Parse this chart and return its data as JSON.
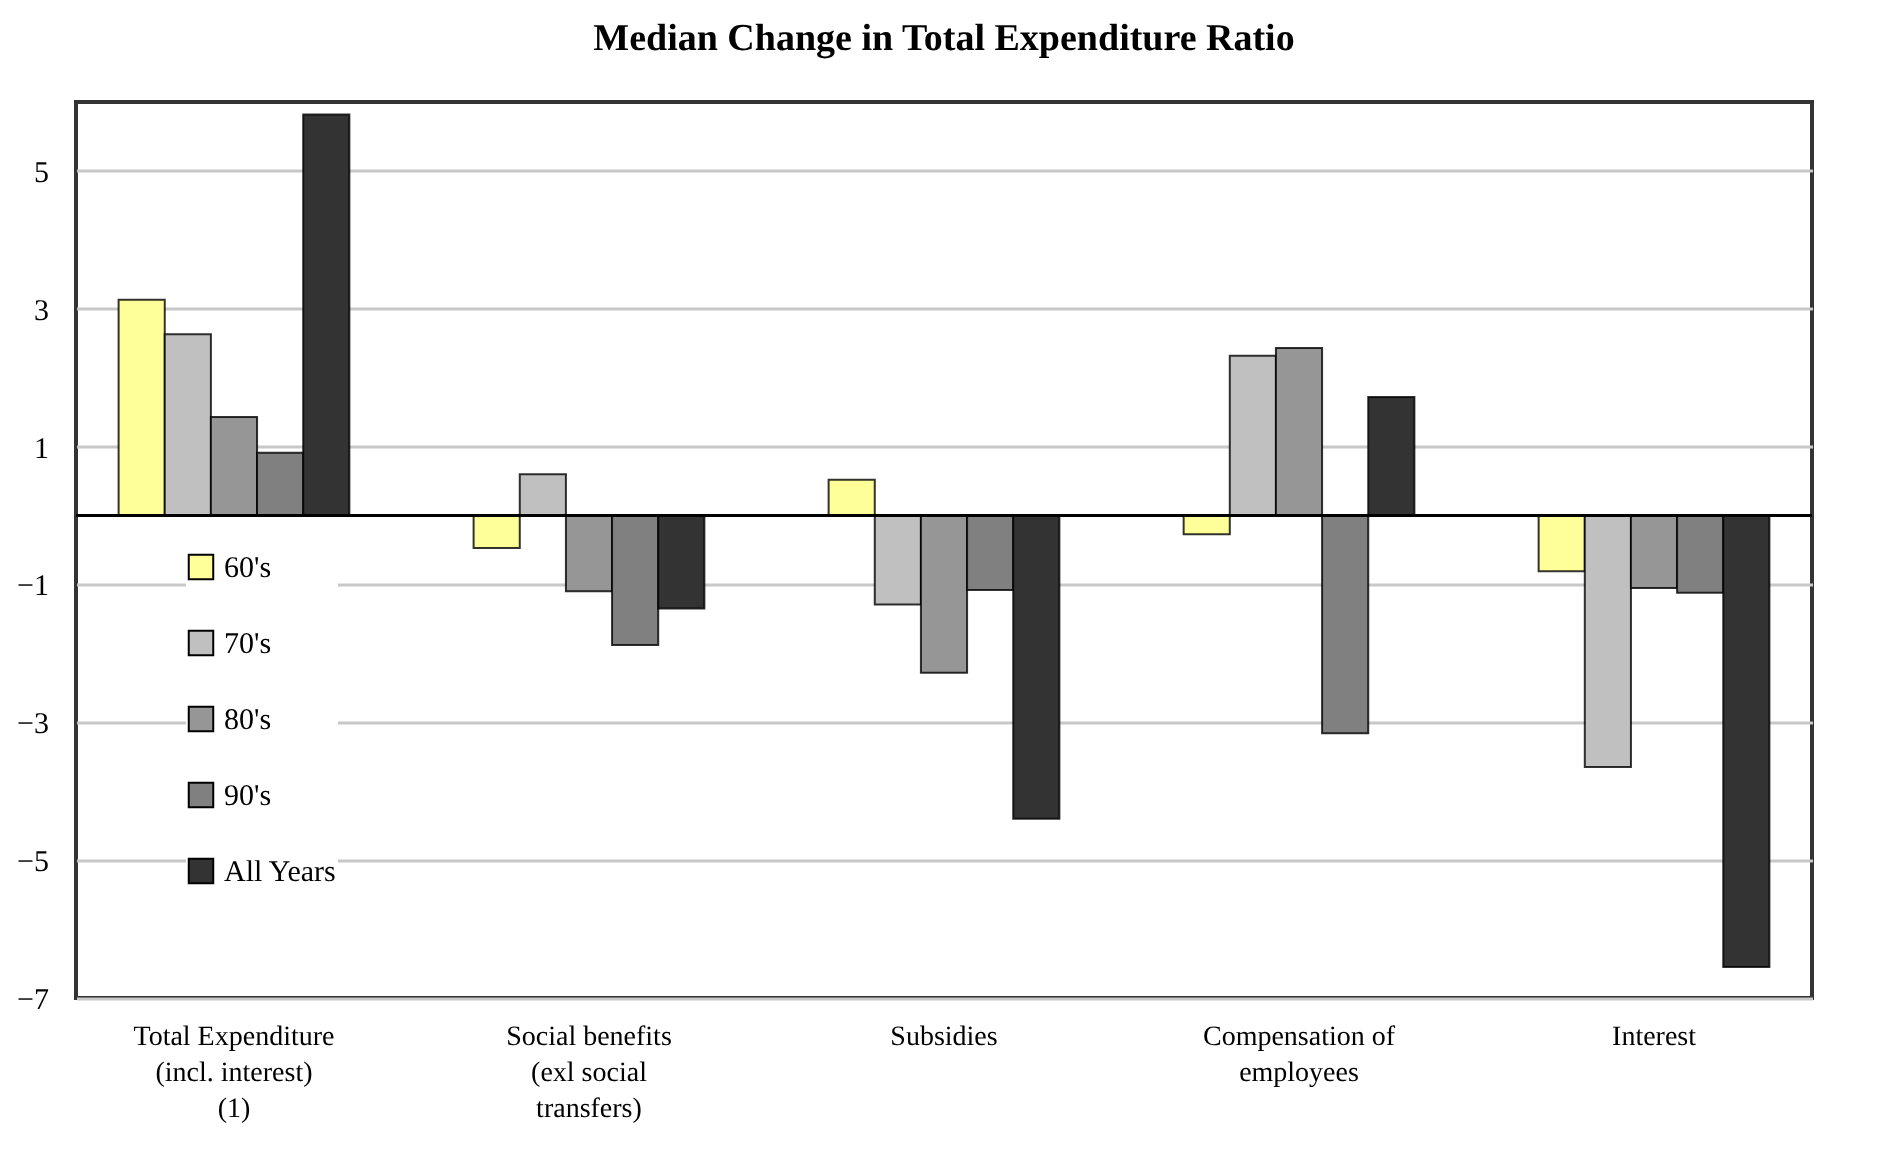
{
  "chart_data": {
    "type": "bar",
    "title": "Median Change in Total Expenditure Ratio",
    "categories": [
      "Total Expenditure (incl. interest) (1)",
      "Social benefits (exl social transfers)",
      "Subsidies",
      "Compensation of employees",
      "Interest"
    ],
    "series": [
      {
        "name": "60's",
        "color": "#ffff99",
        "values": [
          3.13,
          -0.47,
          0.52,
          -0.27,
          -0.81
        ]
      },
      {
        "name": "70's",
        "color": "#c0c0c0",
        "values": [
          2.63,
          0.6,
          -1.29,
          2.32,
          -3.65
        ]
      },
      {
        "name": "80's",
        "color": "#969696",
        "values": [
          1.43,
          -1.1,
          -2.28,
          2.43,
          -1.05
        ]
      },
      {
        "name": "90's",
        "color": "#808080",
        "values": [
          0.91,
          -1.88,
          -1.08,
          -3.16,
          -1.12
        ]
      },
      {
        "name": "All Years",
        "color": "#333333",
        "values": [
          5.82,
          -1.35,
          -4.4,
          1.72,
          -6.55
        ]
      }
    ],
    "ylim": [
      -7,
      6
    ],
    "yticks": [
      -7,
      -5,
      -3,
      -1,
      1,
      3,
      5
    ],
    "grid": "y",
    "legend": "left",
    "ref_lines": [
      {
        "axis": "y",
        "value": 0,
        "color": "#000000"
      }
    ]
  }
}
